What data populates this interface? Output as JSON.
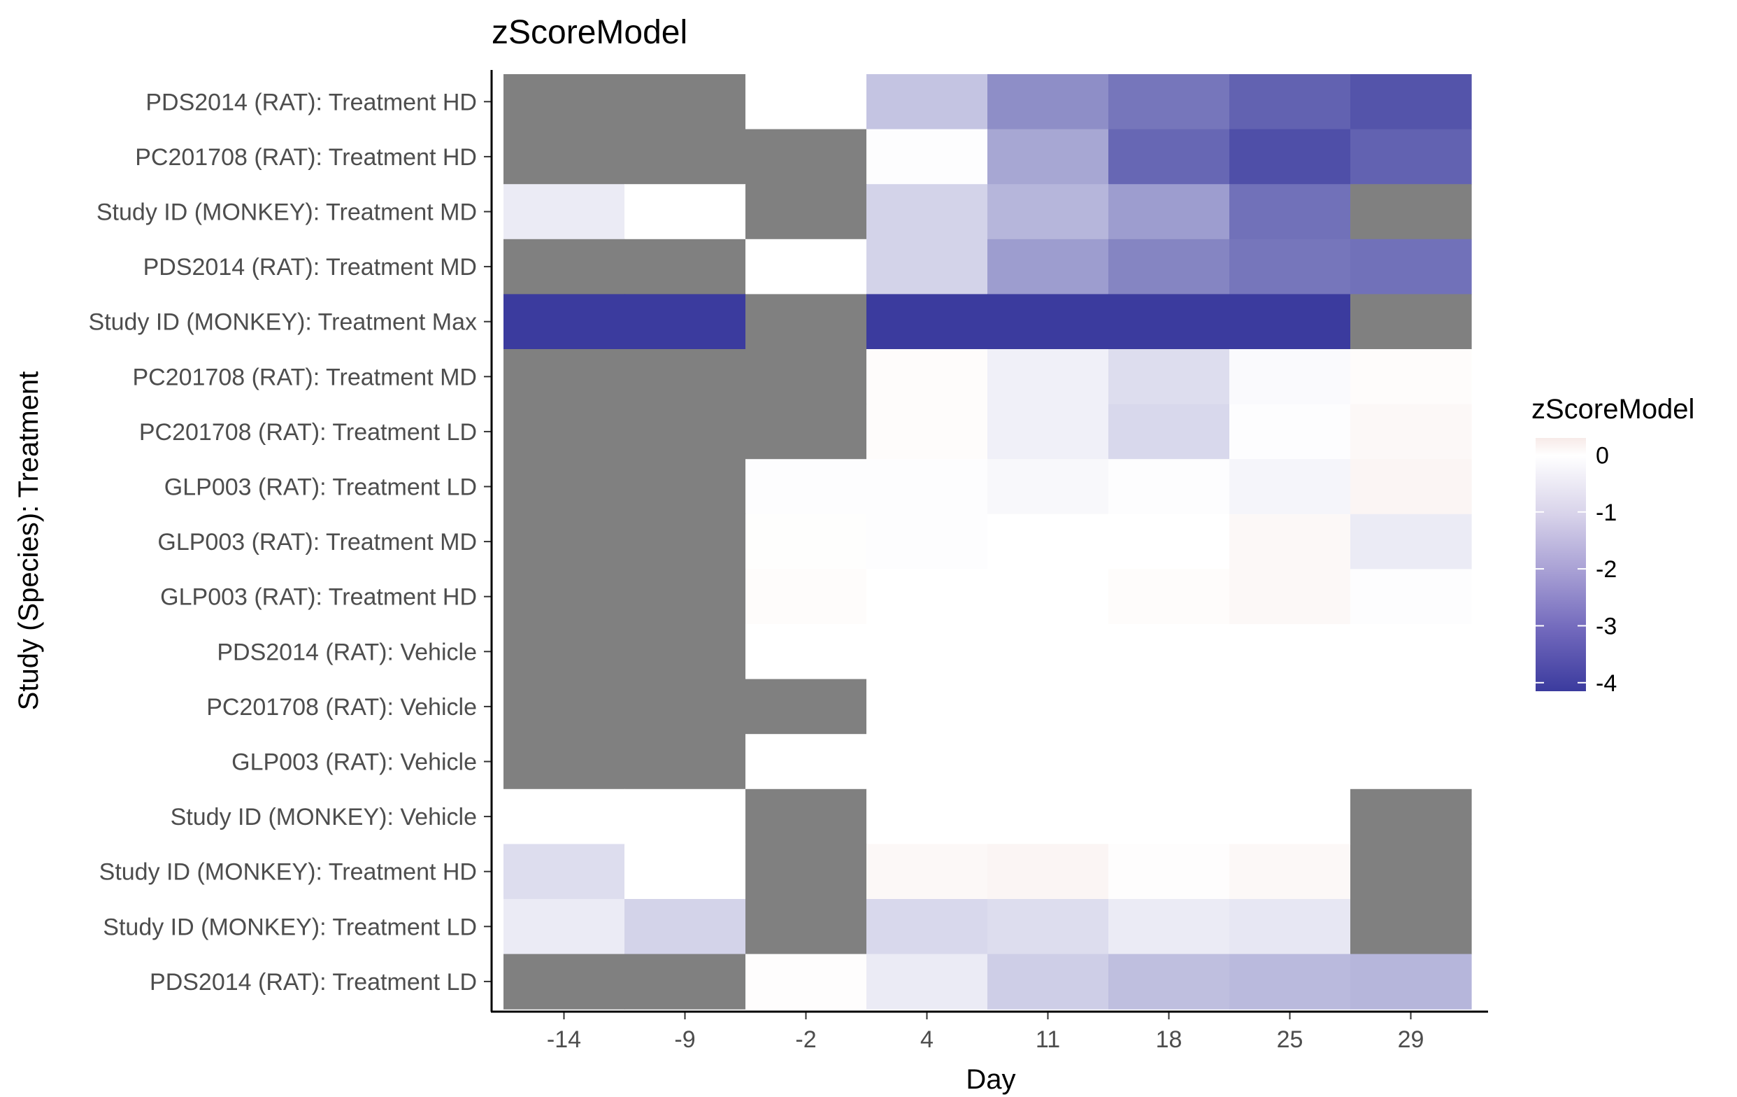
{
  "chart_data": {
    "type": "heatmap",
    "title": "zScoreModel",
    "xlabel": "Day",
    "ylabel": "Study (Species): Treatment",
    "x": [
      "-14",
      "-9",
      "-2",
      "4",
      "11",
      "18",
      "25",
      "29"
    ],
    "y": [
      "PDS2014 (RAT): Treatment HD",
      "PC201708 (RAT): Treatment HD",
      "Study ID (MONKEY): Treatment MD",
      "PDS2014 (RAT): Treatment MD",
      "Study ID (MONKEY): Treatment Max",
      "PC201708 (RAT): Treatment MD",
      "PC201708 (RAT): Treatment LD",
      "GLP003 (RAT): Treatment LD",
      "GLP003 (RAT): Treatment MD",
      "GLP003 (RAT): Treatment HD",
      "PDS2014 (RAT): Vehicle",
      "PC201708 (RAT): Vehicle",
      "GLP003 (RAT): Vehicle",
      "Study ID (MONKEY): Vehicle",
      "Study ID (MONKEY): Treatment HD",
      "Study ID (MONKEY): Treatment LD",
      "PDS2014 (RAT): Treatment LD"
    ],
    "values": [
      [
        null,
        null,
        0,
        -1.2,
        -2.3,
        -2.8,
        -3.2,
        -3.5
      ],
      [
        null,
        null,
        null,
        -0.05,
        -1.8,
        -3.1,
        -3.6,
        -3.2
      ],
      [
        -0.4,
        0,
        null,
        -0.9,
        -1.5,
        -2.0,
        -2.9,
        null
      ],
      [
        null,
        null,
        0,
        -0.9,
        -2.0,
        -2.5,
        -2.8,
        -2.9
      ],
      [
        -4.5,
        -4.6,
        null,
        -4.3,
        -4.2,
        -4.2,
        -4.2,
        null
      ],
      [
        null,
        null,
        null,
        0.05,
        -0.3,
        -0.7,
        -0.1,
        0.05
      ],
      [
        null,
        null,
        null,
        0.05,
        -0.3,
        -0.8,
        -0.05,
        0.1
      ],
      [
        null,
        null,
        -0.05,
        -0.05,
        -0.15,
        -0.05,
        -0.2,
        0.15
      ],
      [
        null,
        null,
        0.02,
        -0.05,
        0,
        0,
        0.1,
        -0.4
      ],
      [
        null,
        null,
        0.05,
        0,
        0,
        0.05,
        0.1,
        -0.05
      ],
      [
        null,
        null,
        0,
        0,
        0,
        0,
        0,
        0
      ],
      [
        null,
        null,
        null,
        0,
        0,
        0,
        0,
        0
      ],
      [
        null,
        null,
        0,
        0,
        0,
        0,
        0,
        0
      ],
      [
        0,
        0,
        null,
        0,
        0,
        0,
        0,
        null
      ],
      [
        -0.7,
        0,
        null,
        0.1,
        0.15,
        0.03,
        0.1,
        null
      ],
      [
        -0.4,
        -0.9,
        null,
        -0.8,
        -0.7,
        -0.4,
        -0.5,
        null
      ],
      [
        null,
        null,
        0.03,
        -0.4,
        -1.0,
        -1.3,
        -1.4,
        -1.5
      ]
    ],
    "missing_color": "#808080",
    "color_scale": {
      "low": "#3b3b9e",
      "mid": "#ffffff",
      "high": "#f7eae8",
      "domain": [
        -4,
        0.3
      ]
    },
    "legend": {
      "title": "zScoreModel",
      "ticks": [
        "0",
        "-1",
        "-2",
        "-3",
        "-4"
      ],
      "tick_values": [
        0,
        -1,
        -2,
        -3,
        -4
      ],
      "placement": "right"
    }
  }
}
